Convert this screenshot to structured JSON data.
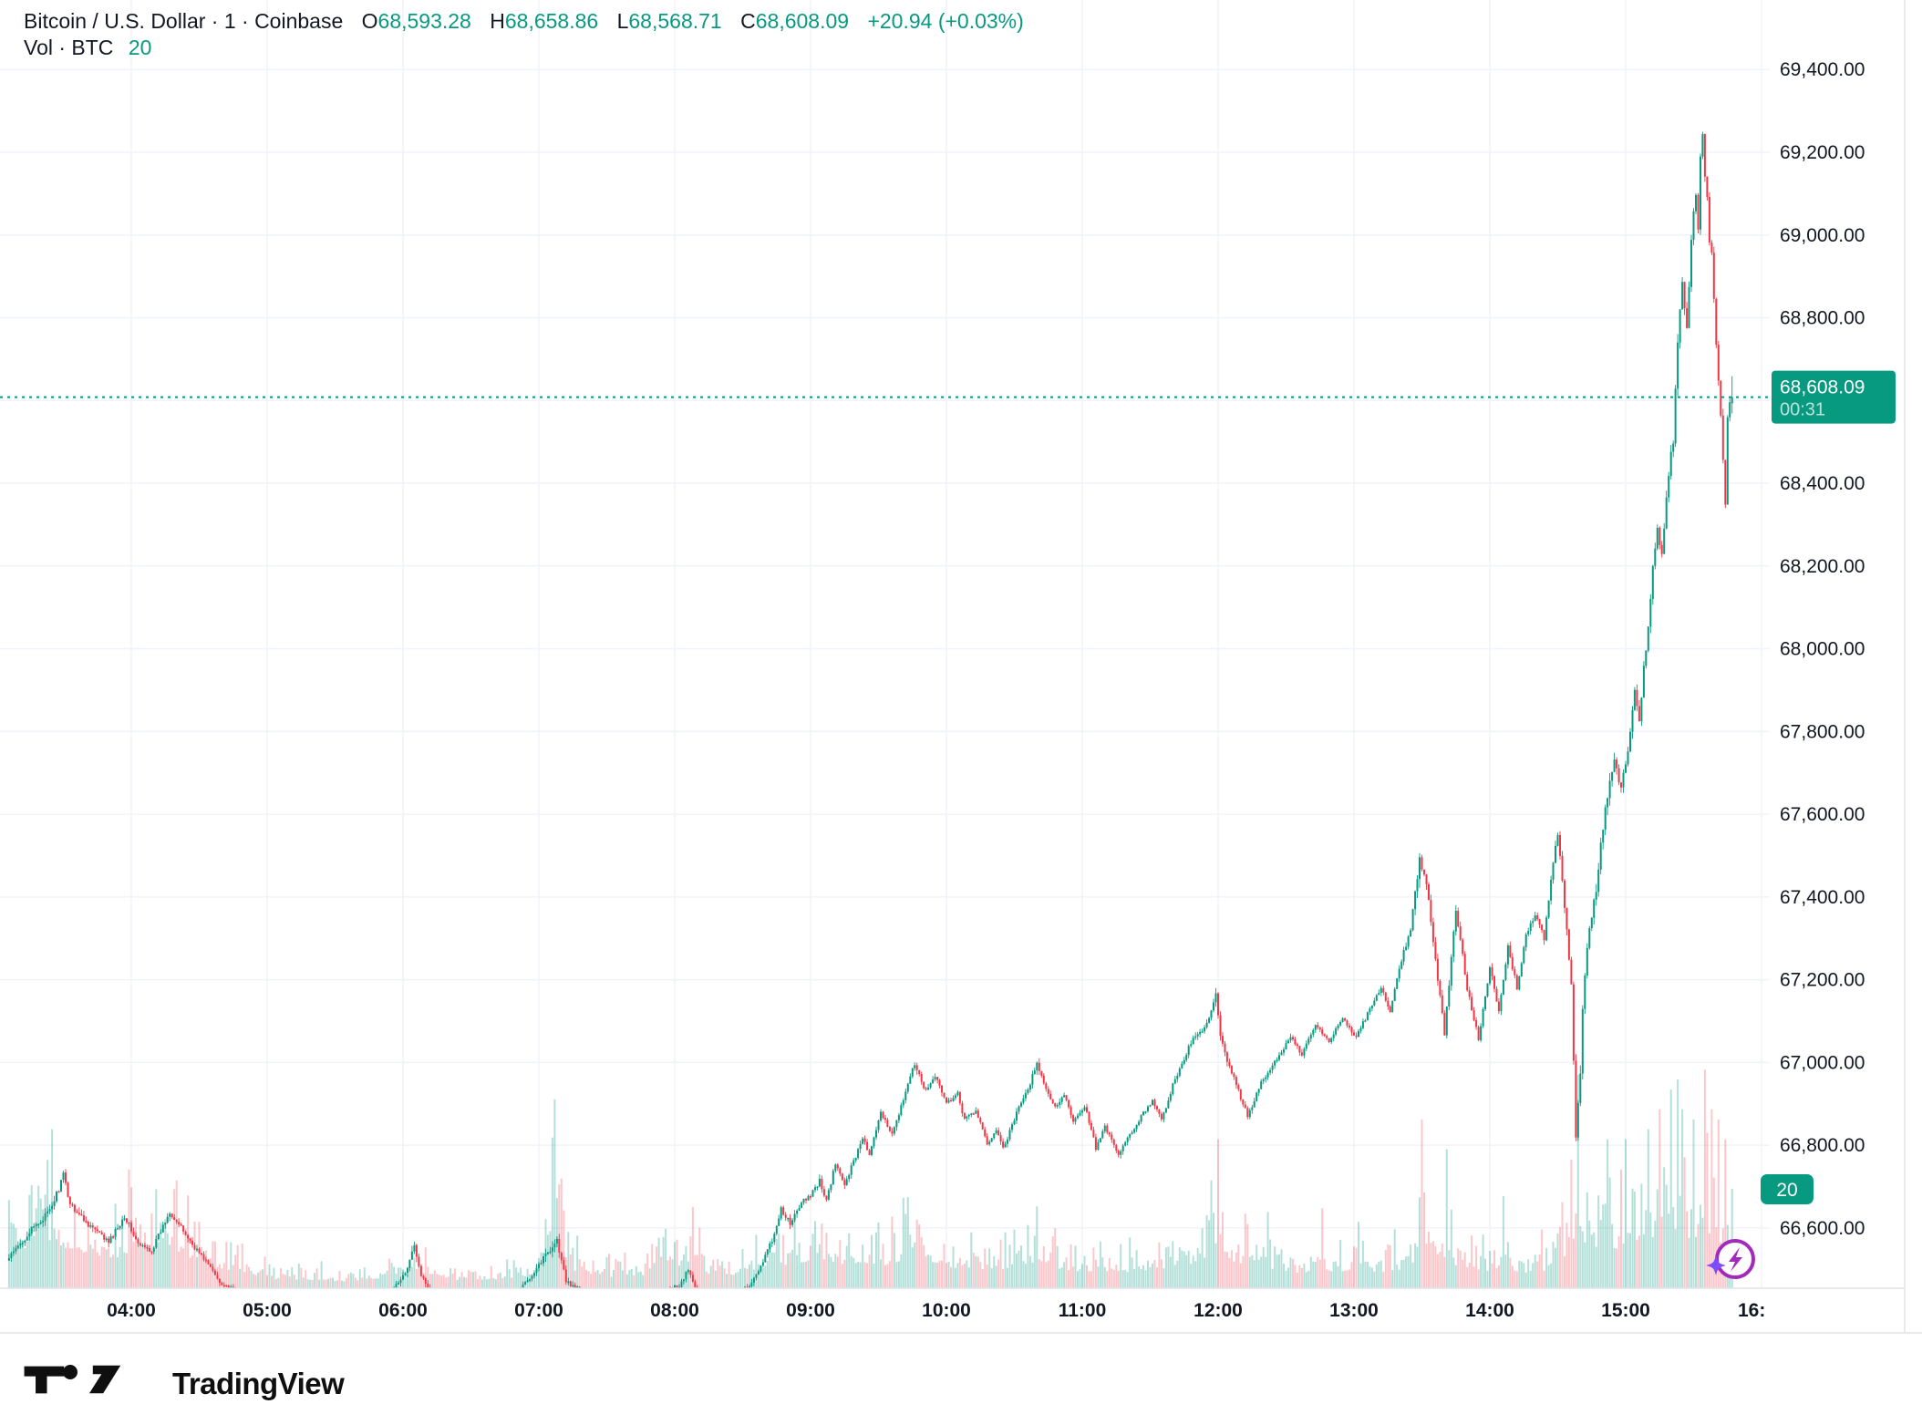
{
  "header": {
    "title": "Bitcoin / U.S. Dollar · 1 · Coinbase",
    "symbol": "Bitcoin / U.S. Dollar",
    "interval": "1",
    "exchange": "Coinbase",
    "o_label": "O",
    "o_value": "68,593.28",
    "h_label": "H",
    "h_value": "68,658.86",
    "l_label": "L",
    "l_value": "68,568.71",
    "c_label": "C",
    "c_value": "68,608.09",
    "change": "+20.94 (+0.03%)",
    "vol_label": "Vol · BTC",
    "vol_value": "20"
  },
  "badges": {
    "price": "68,608.09",
    "countdown": "00:31",
    "volume": "20"
  },
  "logo": {
    "text": "TradingView"
  },
  "colors": {
    "up": "#089981",
    "down": "#f23645",
    "vol_up": "rgba(8,153,129,0.30)",
    "vol_down": "rgba(242,54,69,0.28)",
    "grid": "#f0f3fa",
    "border": "#e0e3eb",
    "text": "#131722",
    "badge": "#089981",
    "ai_purple": "#a22bbd",
    "ai_spark": "#7c4dff"
  },
  "chart_data": {
    "type": "candlestick",
    "title": "Bitcoin / U.S. Dollar · 1 · Coinbase",
    "legend": [
      "price candles",
      "volume BTC"
    ],
    "grid": true,
    "current_candle": {
      "open": 68593.28,
      "high": 68658.86,
      "low": 68568.71,
      "close": 68608.09,
      "change": "+20.94",
      "change_pct": "+0.03%"
    },
    "current_volume_btc": 20,
    "y_axis": {
      "min": 66600,
      "max": 69400,
      "step": 200,
      "label_hidden_behind_badge": 68600,
      "current_price_line": 68608.09
    },
    "x_axis": {
      "labels": [
        "04:00",
        "05:00",
        "06:00",
        "07:00",
        "08:00",
        "09:00",
        "10:00",
        "11:00",
        "12:00",
        "13:00",
        "14:00",
        "15:00",
        "16:"
      ],
      "hours": [
        4,
        5,
        6,
        7,
        8,
        9,
        10,
        11,
        12,
        13,
        14,
        15,
        16
      ],
      "start_minute": 186,
      "end_minute": 947
    },
    "price_keyframes": [
      [
        186,
        66520,
        16
      ],
      [
        196,
        66590,
        18
      ],
      [
        205,
        66640,
        20
      ],
      [
        211,
        66725,
        24
      ],
      [
        214,
        66660,
        20
      ],
      [
        220,
        66620,
        18
      ],
      [
        226,
        66590,
        16
      ],
      [
        231,
        66565,
        16
      ],
      [
        238,
        66630,
        18
      ],
      [
        244,
        66560,
        15
      ],
      [
        250,
        66545,
        13
      ],
      [
        258,
        66640,
        16
      ],
      [
        263,
        66600,
        15
      ],
      [
        268,
        66560,
        14
      ],
      [
        274,
        66520,
        13
      ],
      [
        280,
        66470,
        12
      ],
      [
        292,
        66430,
        10
      ],
      [
        310,
        66410,
        9
      ],
      [
        330,
        66420,
        9
      ],
      [
        350,
        66400,
        9
      ],
      [
        363,
        66500,
        20
      ],
      [
        366,
        66560,
        22
      ],
      [
        369,
        66480,
        16
      ],
      [
        378,
        66420,
        10
      ],
      [
        395,
        66410,
        9
      ],
      [
        410,
        66430,
        10
      ],
      [
        426,
        66550,
        22
      ],
      [
        429,
        66570,
        20
      ],
      [
        433,
        66470,
        14
      ],
      [
        448,
        66420,
        10
      ],
      [
        465,
        66430,
        10
      ],
      [
        483,
        66460,
        12
      ],
      [
        487,
        66500,
        14
      ],
      [
        491,
        66440,
        11
      ],
      [
        505,
        66430,
        10
      ],
      [
        514,
        66460,
        12
      ],
      [
        520,
        66520,
        15
      ],
      [
        524,
        66570,
        16
      ],
      [
        528,
        66645,
        18
      ],
      [
        532,
        66610,
        14
      ],
      [
        537,
        66660,
        15
      ],
      [
        541,
        66680,
        14
      ],
      [
        545,
        66715,
        16
      ],
      [
        548,
        66665,
        14
      ],
      [
        552,
        66755,
        15
      ],
      [
        556,
        66705,
        14
      ],
      [
        560,
        66760,
        15
      ],
      [
        564,
        66820,
        16
      ],
      [
        567,
        66775,
        13
      ],
      [
        572,
        66875,
        15
      ],
      [
        577,
        66830,
        13
      ],
      [
        583,
        66925,
        15
      ],
      [
        587,
        67000,
        17
      ],
      [
        590,
        66950,
        14
      ],
      [
        592,
        66930,
        13
      ],
      [
        596,
        66970,
        13
      ],
      [
        601,
        66900,
        13
      ],
      [
        606,
        66925,
        12
      ],
      [
        609,
        66860,
        13
      ],
      [
        614,
        66885,
        12
      ],
      [
        619,
        66800,
        13
      ],
      [
        623,
        66840,
        12
      ],
      [
        626,
        66790,
        12
      ],
      [
        633,
        66890,
        14
      ],
      [
        638,
        66950,
        14
      ],
      [
        641,
        67000,
        17
      ],
      [
        644,
        66945,
        13
      ],
      [
        649,
        66890,
        13
      ],
      [
        653,
        66925,
        12
      ],
      [
        657,
        66860,
        13
      ],
      [
        662,
        66895,
        12
      ],
      [
        665,
        66840,
        12
      ],
      [
        667,
        66790,
        13
      ],
      [
        671,
        66845,
        12
      ],
      [
        677,
        66775,
        13
      ],
      [
        681,
        66815,
        12
      ],
      [
        686,
        66860,
        12
      ],
      [
        692,
        66910,
        13
      ],
      [
        696,
        66860,
        12
      ],
      [
        701,
        66945,
        13
      ],
      [
        706,
        67005,
        14
      ],
      [
        709,
        67050,
        15
      ],
      [
        714,
        67075,
        15
      ],
      [
        717,
        67105,
        16
      ],
      [
        720,
        67160,
        20
      ],
      [
        722,
        67060,
        18
      ],
      [
        724,
        67020,
        16
      ],
      [
        728,
        66960,
        14
      ],
      [
        734,
        66870,
        14
      ],
      [
        740,
        66950,
        13
      ],
      [
        747,
        67010,
        12
      ],
      [
        753,
        67060,
        13
      ],
      [
        758,
        67020,
        12
      ],
      [
        764,
        67090,
        13
      ],
      [
        770,
        67050,
        12
      ],
      [
        776,
        67110,
        13
      ],
      [
        782,
        67060,
        12
      ],
      [
        788,
        67130,
        13
      ],
      [
        793,
        67180,
        13
      ],
      [
        797,
        67120,
        13
      ],
      [
        801,
        67230,
        14
      ],
      [
        806,
        67320,
        16
      ],
      [
        810,
        67500,
        40
      ],
      [
        813,
        67430,
        26
      ],
      [
        817,
        67250,
        20
      ],
      [
        821,
        67070,
        20
      ],
      [
        826,
        67370,
        20
      ],
      [
        831,
        67180,
        16
      ],
      [
        836,
        67060,
        16
      ],
      [
        841,
        67230,
        16
      ],
      [
        845,
        67120,
        15
      ],
      [
        849,
        67280,
        15
      ],
      [
        853,
        67180,
        15
      ],
      [
        857,
        67310,
        15
      ],
      [
        861,
        67355,
        16
      ],
      [
        865,
        67300,
        16
      ],
      [
        869,
        67490,
        20
      ],
      [
        871,
        67550,
        20
      ],
      [
        875,
        67320,
        22
      ],
      [
        877,
        67180,
        26
      ],
      [
        879,
        66830,
        35
      ],
      [
        881,
        66980,
        28
      ],
      [
        882,
        67120,
        28
      ],
      [
        884,
        67280,
        26
      ],
      [
        888,
        67420,
        30
      ],
      [
        892,
        67620,
        30
      ],
      [
        896,
        67730,
        24
      ],
      [
        899,
        67660,
        22
      ],
      [
        902,
        67760,
        24
      ],
      [
        905,
        67900,
        26
      ],
      [
        907,
        67820,
        22
      ],
      [
        909,
        67950,
        26
      ],
      [
        911,
        68060,
        28
      ],
      [
        913,
        68200,
        28
      ],
      [
        915,
        68290,
        26
      ],
      [
        917,
        68230,
        22
      ],
      [
        919,
        68370,
        26
      ],
      [
        921,
        68470,
        28
      ],
      [
        922,
        68500,
        28
      ],
      [
        924,
        68740,
        30
      ],
      [
        926,
        68890,
        24
      ],
      [
        928,
        68770,
        22
      ],
      [
        930,
        68990,
        24
      ],
      [
        931,
        69060,
        22
      ],
      [
        932,
        69105,
        22
      ],
      [
        933,
        69020,
        20
      ],
      [
        934,
        69190,
        24
      ],
      [
        935,
        69230,
        35
      ],
      [
        936,
        69150,
        26
      ],
      [
        937,
        69100,
        24
      ],
      [
        938,
        68990,
        26
      ],
      [
        939,
        68950,
        24
      ],
      [
        940,
        68840,
        26
      ],
      [
        941,
        68730,
        26
      ],
      [
        942,
        68650,
        24
      ],
      [
        943,
        68560,
        24
      ],
      [
        944,
        68450,
        24
      ],
      [
        945,
        68355,
        24
      ],
      [
        946,
        68555,
        20
      ],
      [
        947,
        68593,
        10
      ],
      [
        948,
        68608,
        10
      ]
    ],
    "volume_envelope_btc": [
      [
        186,
        26
      ],
      [
        205,
        32
      ],
      [
        215,
        26
      ],
      [
        230,
        20
      ],
      [
        245,
        26
      ],
      [
        258,
        28
      ],
      [
        270,
        18
      ],
      [
        285,
        12
      ],
      [
        300,
        7
      ],
      [
        320,
        5
      ],
      [
        340,
        5
      ],
      [
        360,
        9
      ],
      [
        366,
        12
      ],
      [
        380,
        6
      ],
      [
        400,
        6
      ],
      [
        420,
        9
      ],
      [
        427,
        38
      ],
      [
        435,
        12
      ],
      [
        450,
        8
      ],
      [
        465,
        9
      ],
      [
        482,
        16
      ],
      [
        487,
        20
      ],
      [
        495,
        10
      ],
      [
        505,
        9
      ],
      [
        515,
        12
      ],
      [
        525,
        16
      ],
      [
        535,
        18
      ],
      [
        545,
        20
      ],
      [
        555,
        17
      ],
      [
        565,
        18
      ],
      [
        575,
        16
      ],
      [
        587,
        26
      ],
      [
        595,
        16
      ],
      [
        605,
        14
      ],
      [
        615,
        13
      ],
      [
        625,
        13
      ],
      [
        635,
        17
      ],
      [
        641,
        20
      ],
      [
        650,
        13
      ],
      [
        660,
        12
      ],
      [
        670,
        12
      ],
      [
        680,
        11
      ],
      [
        690,
        12
      ],
      [
        700,
        14
      ],
      [
        710,
        16
      ],
      [
        720,
        30
      ],
      [
        726,
        18
      ],
      [
        734,
        15
      ],
      [
        745,
        12
      ],
      [
        755,
        11
      ],
      [
        765,
        12
      ],
      [
        775,
        11
      ],
      [
        785,
        11
      ],
      [
        795,
        12
      ],
      [
        805,
        14
      ],
      [
        810,
        34
      ],
      [
        818,
        22
      ],
      [
        825,
        16
      ],
      [
        835,
        13
      ],
      [
        845,
        12
      ],
      [
        855,
        11
      ],
      [
        865,
        12
      ],
      [
        871,
        20
      ],
      [
        875,
        22
      ],
      [
        879,
        43
      ],
      [
        884,
        26
      ],
      [
        888,
        28
      ],
      [
        892,
        30
      ],
      [
        896,
        26
      ],
      [
        900,
        30
      ],
      [
        905,
        28
      ],
      [
        910,
        32
      ],
      [
        915,
        36
      ],
      [
        920,
        40
      ],
      [
        923,
        42
      ],
      [
        925,
        36
      ],
      [
        930,
        34
      ],
      [
        935,
        44
      ],
      [
        938,
        36
      ],
      [
        941,
        34
      ],
      [
        944,
        30
      ],
      [
        946,
        24
      ],
      [
        948,
        20
      ]
    ]
  }
}
